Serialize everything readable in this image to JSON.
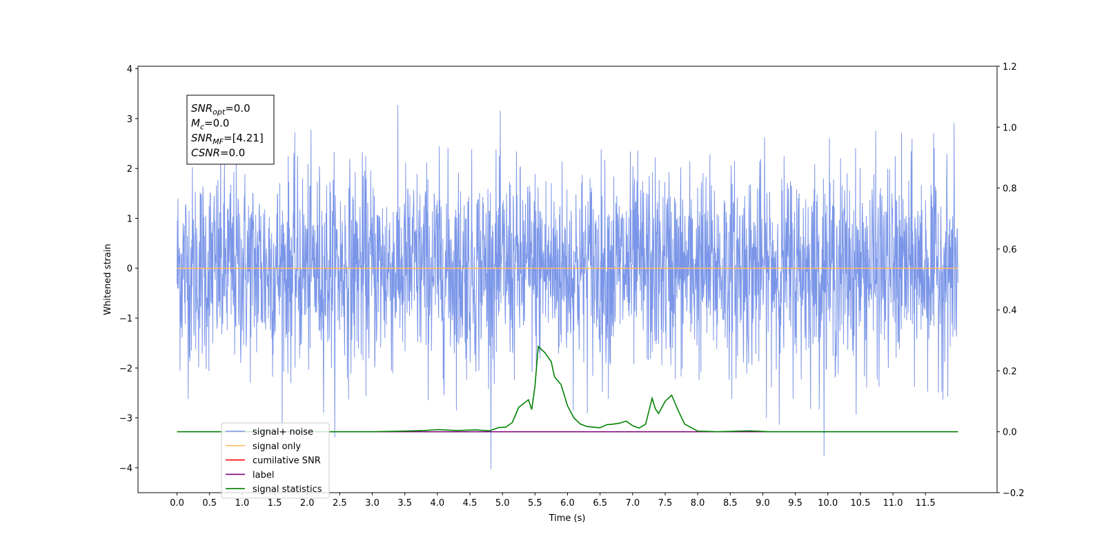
{
  "chart_data": {
    "type": "line",
    "xlabel": "Time (s)",
    "ylabel": "Whitened strain",
    "xlim": [
      -0.6,
      12.6
    ],
    "ylim": [
      -4.5,
      4.05
    ],
    "y2lim": [
      -0.2,
      1.2
    ],
    "x_ticks": [
      0.0,
      0.5,
      1.0,
      1.5,
      2.0,
      2.5,
      3.0,
      3.5,
      4.0,
      4.5,
      5.0,
      5.5,
      6.0,
      6.5,
      7.0,
      7.5,
      8.0,
      8.5,
      9.0,
      9.5,
      10.0,
      10.5,
      11.0,
      11.5
    ],
    "x_tick_labels": [
      "0.0",
      "0.5",
      "1.0",
      "1.5",
      "2.0",
      "2.5",
      "3.0",
      "3.5",
      "4.0",
      "4.5",
      "5.0",
      "5.5",
      "6.0",
      "6.5",
      "7.0",
      "7.5",
      "8.0",
      "8.5",
      "9.0",
      "9.5",
      "10.0",
      "10.5",
      "11.0",
      "11.5"
    ],
    "y_ticks": [
      -4,
      -3,
      -2,
      -1,
      0,
      1,
      2,
      3,
      4
    ],
    "y_tick_labels": [
      "−4",
      "−3",
      "−2",
      "−1",
      "0",
      "1",
      "2",
      "3",
      "4"
    ],
    "y2_ticks": [
      -0.2,
      0.0,
      0.2,
      0.4,
      0.6,
      0.8,
      1.0,
      1.2
    ],
    "y2_tick_labels": [
      "−0.2",
      "0.0",
      "0.2",
      "0.4",
      "0.6",
      "0.8",
      "1.0",
      "1.2"
    ],
    "info_box": {
      "lines": [
        {
          "base": "SNR",
          "sub": "opt",
          "value": "=0.0"
        },
        {
          "base": "M",
          "sub": "c",
          "value": "=0.0"
        },
        {
          "base": "SNR",
          "sub": "MF",
          "value": "=[4.21]"
        },
        {
          "base": "CSNR",
          "sub": "",
          "value": "=0.0"
        }
      ]
    },
    "legend_position": "lower-left",
    "series": [
      {
        "name": "signal+ noise",
        "color": "#7b96e8",
        "axis": "left",
        "note_style": "dense noise, roughly ±1.5 core with spikes to about ±3.6",
        "x_range": [
          0.0,
          12.0
        ]
      },
      {
        "name": "signal only",
        "color": "#ffbb66",
        "axis": "left",
        "x": [
          0.0,
          12.0
        ],
        "y": [
          0.0,
          0.0
        ]
      },
      {
        "name": "cumilative SNR",
        "color": "#ff0000",
        "axis": "right",
        "x": [
          0.0,
          12.0
        ],
        "y": [
          0.0,
          0.0
        ]
      },
      {
        "name": "label",
        "color": "#800080",
        "axis": "right",
        "x": [
          0.0,
          12.0
        ],
        "y": [
          0.0,
          0.0
        ]
      },
      {
        "name": "signal statistics",
        "color": "#008000",
        "axis": "right",
        "x": [
          0.0,
          3.0,
          3.5,
          3.8,
          4.0,
          4.3,
          4.6,
          4.8,
          4.95,
          5.05,
          5.15,
          5.25,
          5.4,
          5.45,
          5.5,
          5.55,
          5.65,
          5.75,
          5.8,
          5.9,
          6.0,
          6.1,
          6.2,
          6.3,
          6.4,
          6.5,
          6.6,
          6.7,
          6.8,
          6.9,
          7.0,
          7.1,
          7.2,
          7.3,
          7.35,
          7.4,
          7.5,
          7.6,
          7.7,
          7.8,
          8.0,
          8.3,
          8.8,
          9.1,
          9.5,
          12.0
        ],
        "y": [
          0.0,
          0.0,
          0.002,
          0.004,
          0.007,
          0.004,
          0.006,
          0.003,
          0.014,
          0.015,
          0.03,
          0.08,
          0.105,
          0.073,
          0.15,
          0.28,
          0.26,
          0.23,
          0.18,
          0.155,
          0.085,
          0.045,
          0.025,
          0.017,
          0.015,
          0.013,
          0.023,
          0.025,
          0.028,
          0.035,
          0.02,
          0.012,
          0.025,
          0.11,
          0.075,
          0.06,
          0.1,
          0.12,
          0.07,
          0.025,
          0.002,
          0.0,
          0.003,
          0.0,
          0.0,
          0.0
        ]
      }
    ]
  }
}
